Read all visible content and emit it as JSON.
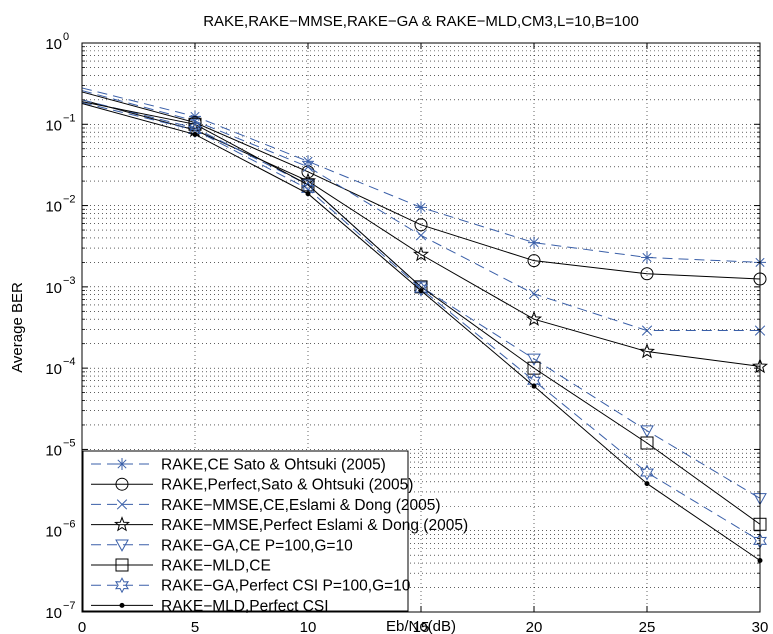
{
  "chart_data": {
    "type": "line",
    "title": "RAKE,RAKE−MMSE,RAKE−GA & RAKE−MLD,CM3,L=10,B=100",
    "xlabel": "Eb/No(dB)",
    "ylabel": "Average BER",
    "xlim": [
      0,
      30
    ],
    "ylim": [
      1e-07,
      1
    ],
    "yscale": "log",
    "grid": true,
    "legend_position": "bottom-left",
    "x_ticks": [
      "0",
      "5",
      "10",
      "15",
      "20",
      "25",
      "30"
    ],
    "y_ticks": [
      {
        "base": "10",
        "exp": "0"
      },
      {
        "base": "10",
        "exp": "−1"
      },
      {
        "base": "10",
        "exp": "−2"
      },
      {
        "base": "10",
        "exp": "−3"
      },
      {
        "base": "10",
        "exp": "−4"
      },
      {
        "base": "10",
        "exp": "−5"
      },
      {
        "base": "10",
        "exp": "−6"
      },
      {
        "base": "10",
        "exp": "−7"
      }
    ],
    "x": [
      0,
      5,
      10,
      15,
      20,
      25,
      30
    ],
    "series": [
      {
        "name": "RAKE,CE Sato & Ohtsuki (2005)",
        "color": "#3a5fa8",
        "dash": true,
        "marker": "asterisk",
        "values": [
          0.28,
          0.125,
          0.035,
          0.0095,
          0.0035,
          0.0023,
          0.002
        ]
      },
      {
        "name": "RAKE,Perfect,Sato & Ohtsuki (2005)",
        "color": "#000000",
        "dash": false,
        "marker": "circle",
        "values": [
          0.25,
          0.105,
          0.026,
          0.0058,
          0.0021,
          0.00145,
          0.00125
        ]
      },
      {
        "name": "RAKE−MMSE,CE,Eslami & Dong (2005)",
        "color": "#3a5fa8",
        "dash": true,
        "marker": "x",
        "values": [
          0.26,
          0.11,
          0.03,
          0.0043,
          0.00082,
          0.00029,
          0.00029
        ]
      },
      {
        "name": "RAKE−MMSE,Perfect Eslami & Dong (2005)",
        "color": "#000000",
        "dash": false,
        "marker": "pentagram",
        "values": [
          0.2,
          0.085,
          0.02,
          0.0025,
          0.0004,
          0.00016,
          0.000105
        ]
      },
      {
        "name": "RAKE−GA,CE P=100,G=10",
        "color": "#3a5fa8",
        "dash": true,
        "marker": "triangle-down",
        "values": [
          0.2,
          0.09,
          0.018,
          0.001,
          0.00013,
          1.7e-05,
          2.5e-06
        ]
      },
      {
        "name": "RAKE−MLD,CE",
        "color": "#000000",
        "dash": false,
        "marker": "square",
        "values": [
          0.19,
          0.1,
          0.018,
          0.001,
          0.0001,
          1.2e-05,
          1.2e-06
        ]
      },
      {
        "name": "RAKE−GA,Perfect CSI P=100,G=10",
        "color": "#3a5fa8",
        "dash": true,
        "marker": "hexagram",
        "values": [
          0.185,
          0.085,
          0.016,
          0.00095,
          7e-05,
          5.2e-06,
          7.5e-07
        ]
      },
      {
        "name": "RAKE−MLD,Perfect CSI",
        "color": "#000000",
        "dash": false,
        "marker": "dot",
        "values": [
          0.18,
          0.075,
          0.014,
          0.0009,
          6e-05,
          3.8e-06,
          4.3e-07
        ]
      }
    ]
  }
}
